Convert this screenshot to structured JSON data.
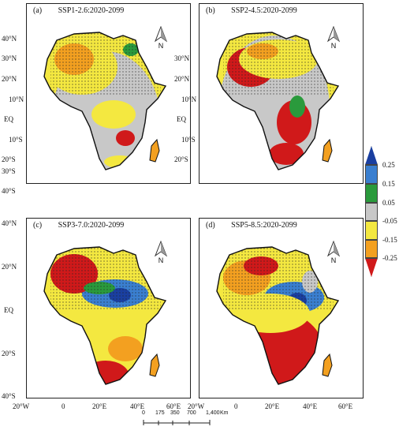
{
  "panels": [
    {
      "letter": "(a)",
      "title": "SSP1-2.6:2020-2099"
    },
    {
      "letter": "(b)",
      "title": "SSP2-4.5:2020-2099"
    },
    {
      "letter": "(c)",
      "title": "SSP3-7.0:2020-2099"
    },
    {
      "letter": "(d)",
      "title": "SSP5-8.5:2020-2099"
    }
  ],
  "lat_labels": [
    "40°N",
    "30°N",
    "20°N",
    "10°N",
    "EQ",
    "10°S",
    "20°S",
    "30°S",
    "40°S"
  ],
  "lat_labels_bottom": [
    "40°N",
    "20°N",
    "EQ",
    "20°S",
    "40°S"
  ],
  "lon_labels": [
    "20°W",
    "0",
    "20°E",
    "40°E",
    "60°E"
  ],
  "north_label": "N",
  "colorbar": {
    "ticks": [
      "0.25",
      "0.15",
      "0.05",
      "-0.05",
      "-0.15",
      "-0.25"
    ],
    "colors": [
      "#1a3fa0",
      "#3a7fd0",
      "#2a9a3c",
      "#c8c8c8",
      "#f4e840",
      "#f3a020",
      "#d0191a"
    ]
  },
  "scalebar": {
    "ticks": [
      "0",
      "175",
      "350",
      "700",
      "1,400",
      "Km"
    ]
  }
}
